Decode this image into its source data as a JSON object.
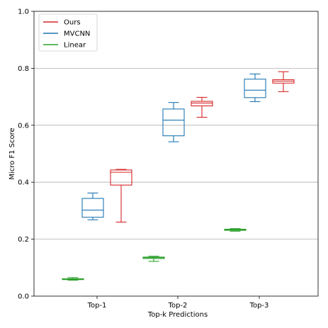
{
  "chart_data": {
    "type": "box",
    "xlabel": "Top-k Predictions",
    "ylabel": "Micro F1 Score",
    "ylim": [
      0,
      1.0
    ],
    "yticks": [
      "0.0",
      "0.2",
      "0.4",
      "0.6",
      "0.8",
      "1.0"
    ],
    "categories": [
      "Top-1",
      "Top-2",
      "Top-3"
    ],
    "grid": "horizontal",
    "legend_position": "top-left",
    "series": [
      {
        "name": "Ours",
        "color": "#d62728",
        "boxes": [
          {
            "whisker_low": 0.26,
            "q1": 0.39,
            "median": 0.435,
            "q3": 0.443,
            "whisker_high": 0.445
          },
          {
            "whisker_low": 0.628,
            "q1": 0.668,
            "median": 0.678,
            "q3": 0.684,
            "whisker_high": 0.698
          },
          {
            "whisker_low": 0.718,
            "q1": 0.748,
            "median": 0.755,
            "q3": 0.76,
            "whisker_high": 0.788
          }
        ]
      },
      {
        "name": "MVCNN",
        "color": "#1f77b4",
        "boxes": [
          {
            "whisker_low": 0.268,
            "q1": 0.277,
            "median": 0.302,
            "q3": 0.343,
            "whisker_high": 0.362
          },
          {
            "whisker_low": 0.542,
            "q1": 0.563,
            "median": 0.618,
            "q3": 0.657,
            "whisker_high": 0.68
          },
          {
            "whisker_low": 0.683,
            "q1": 0.697,
            "median": 0.723,
            "q3": 0.762,
            "whisker_high": 0.78
          }
        ]
      },
      {
        "name": "Linear",
        "color": "#2ca02c",
        "boxes": [
          {
            "whisker_low": 0.056,
            "q1": 0.058,
            "median": 0.06,
            "q3": 0.061,
            "whisker_high": 0.065
          },
          {
            "whisker_low": 0.122,
            "q1": 0.132,
            "median": 0.135,
            "q3": 0.137,
            "whisker_high": 0.14
          },
          {
            "whisker_low": 0.228,
            "q1": 0.231,
            "median": 0.233,
            "q3": 0.235,
            "whisker_high": 0.237
          }
        ]
      }
    ]
  }
}
